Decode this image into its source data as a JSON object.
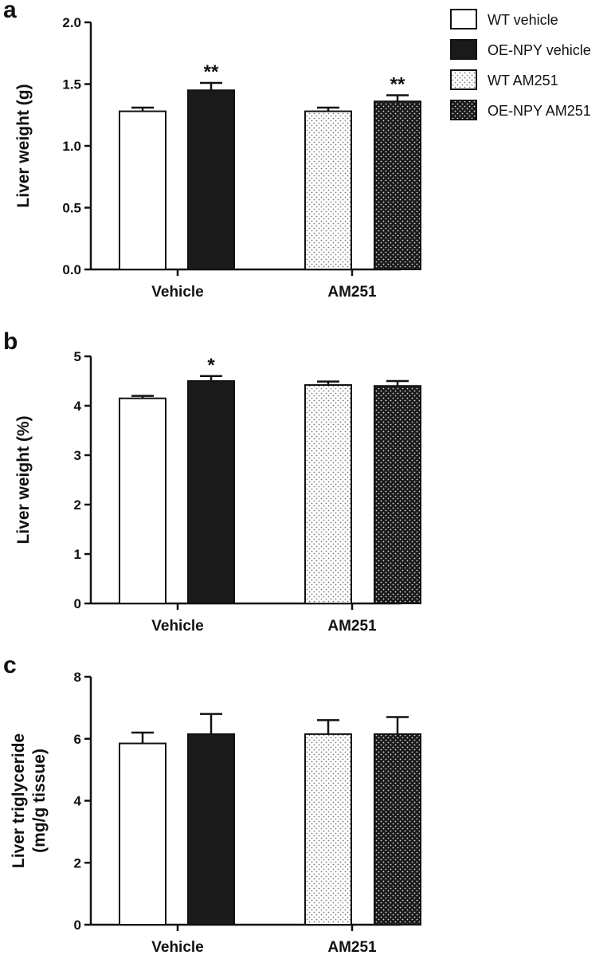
{
  "chart_data": [
    {
      "panel": "a",
      "type": "bar",
      "ylabel": [
        "Liver weight (g)"
      ],
      "ylim": [
        0,
        2.0
      ],
      "yticks": [
        "0.0",
        "0.5",
        "1.0",
        "1.5",
        "2.0"
      ],
      "categories": [
        "Vehicle",
        "AM251"
      ],
      "series": [
        {
          "name": "WT vehicle",
          "fill": "white",
          "values": [
            1.28,
            null
          ],
          "errors": [
            0.03,
            null
          ],
          "annotations": [
            "",
            ""
          ]
        },
        {
          "name": "OE-NPY vehicle",
          "fill": "black",
          "values": [
            1.45,
            null
          ],
          "errors": [
            0.06,
            null
          ],
          "annotations": [
            "**",
            ""
          ]
        },
        {
          "name": "WT AM251",
          "fill": "dots-light",
          "values": [
            null,
            1.28
          ],
          "errors": [
            null,
            0.03
          ],
          "annotations": [
            "",
            ""
          ]
        },
        {
          "name": "OE-NPY AM251",
          "fill": "dots-dark",
          "values": [
            null,
            1.36
          ],
          "errors": [
            null,
            0.05
          ],
          "annotations": [
            "",
            "**"
          ]
        }
      ]
    },
    {
      "panel": "b",
      "type": "bar",
      "ylabel": [
        "Liver weight (%)"
      ],
      "ylim": [
        0,
        5
      ],
      "yticks": [
        "0",
        "1",
        "2",
        "3",
        "4",
        "5"
      ],
      "categories": [
        "Vehicle",
        "AM251"
      ],
      "series": [
        {
          "name": "WT vehicle",
          "fill": "white",
          "values": [
            4.15,
            null
          ],
          "errors": [
            0.05,
            null
          ],
          "annotations": [
            "",
            ""
          ]
        },
        {
          "name": "OE-NPY vehicle",
          "fill": "black",
          "values": [
            4.5,
            null
          ],
          "errors": [
            0.1,
            null
          ],
          "annotations": [
            "*",
            ""
          ]
        },
        {
          "name": "WT AM251",
          "fill": "dots-light",
          "values": [
            null,
            4.42
          ],
          "errors": [
            null,
            0.07
          ],
          "annotations": [
            "",
            ""
          ]
        },
        {
          "name": "OE-NPY AM251",
          "fill": "dots-dark",
          "values": [
            null,
            4.4
          ],
          "errors": [
            null,
            0.1
          ],
          "annotations": [
            "",
            ""
          ]
        }
      ]
    },
    {
      "panel": "c",
      "type": "bar",
      "ylabel": [
        "Liver triglyceride",
        "(mg/g tissue)"
      ],
      "ylim": [
        0,
        8
      ],
      "yticks": [
        "0",
        "2",
        "4",
        "6",
        "8"
      ],
      "categories": [
        "Vehicle",
        "AM251"
      ],
      "series": [
        {
          "name": "WT vehicle",
          "fill": "white",
          "values": [
            5.85,
            null
          ],
          "errors": [
            0.35,
            null
          ],
          "annotations": [
            "",
            ""
          ]
        },
        {
          "name": "OE-NPY vehicle",
          "fill": "black",
          "values": [
            6.15,
            null
          ],
          "errors": [
            0.65,
            null
          ],
          "annotations": [
            "",
            ""
          ]
        },
        {
          "name": "WT AM251",
          "fill": "dots-light",
          "values": [
            null,
            6.15
          ],
          "errors": [
            null,
            0.45
          ],
          "annotations": [
            "",
            ""
          ]
        },
        {
          "name": "OE-NPY AM251",
          "fill": "dots-dark",
          "values": [
            null,
            6.15
          ],
          "errors": [
            null,
            0.55
          ],
          "annotations": [
            "",
            ""
          ]
        }
      ]
    }
  ],
  "legend": {
    "placement": "top-right",
    "entries": [
      {
        "label": "WT vehicle",
        "fill": "white"
      },
      {
        "label": "OE-NPY vehicle",
        "fill": "black"
      },
      {
        "label": "WT AM251",
        "fill": "dots-light"
      },
      {
        "label": "OE-NPY AM251",
        "fill": "dots-dark"
      }
    ]
  },
  "colors": {
    "axis": "#111111",
    "bar_dark": "#1a1a1a",
    "bar_outline": "#111111",
    "background": "#ffffff"
  }
}
